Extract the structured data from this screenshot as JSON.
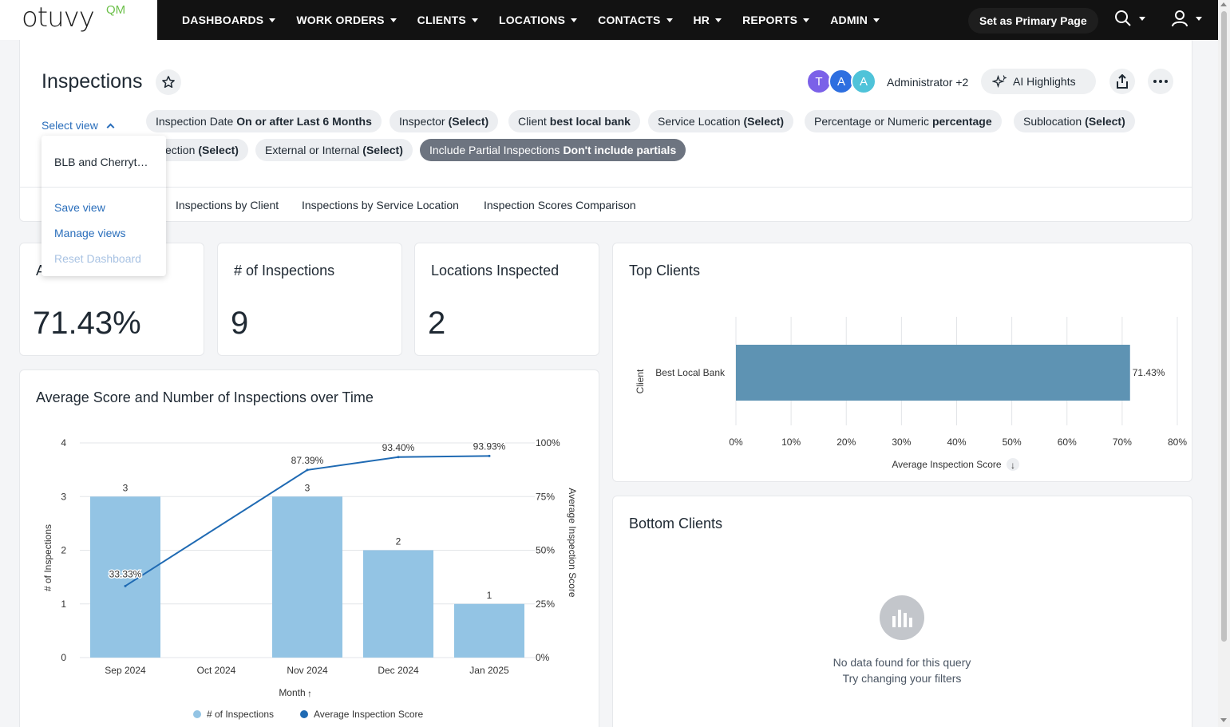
{
  "brand": {
    "logo_text": "otuvy",
    "logo_suffix": "QM"
  },
  "nav": {
    "items": [
      "DASHBOARDS",
      "WORK ORDERS",
      "CLIENTS",
      "LOCATIONS",
      "CONTACTS",
      "HR",
      "REPORTS",
      "ADMIN"
    ],
    "primary_button": "Set as Primary Page"
  },
  "header": {
    "title": "Inspections",
    "avatars": [
      {
        "letter": "T",
        "color": "#7b61e8"
      },
      {
        "letter": "A",
        "color": "#2e6fe0"
      },
      {
        "letter": "A",
        "color": "#4fc3d9"
      }
    ],
    "admin_label": "Administrator +2",
    "ai_button": "AI Highlights",
    "select_view": "Select view"
  },
  "filters": [
    {
      "label": "Inspection Date",
      "value": "On or after Last 6 Months"
    },
    {
      "label": "Inspector",
      "value": "(Select)"
    },
    {
      "label": "Client",
      "value": "best local bank"
    },
    {
      "label": "Service Location",
      "value": "(Select)"
    },
    {
      "label": "Percentage or Numeric",
      "value": "percentage"
    },
    {
      "label": "Sublocation",
      "value": "(Select)"
    },
    {
      "label": "ection",
      "value": "(Select)"
    },
    {
      "label": "External or Internal",
      "value": "(Select)"
    },
    {
      "label": "Include Partial Inspections",
      "value": "Don't include partials"
    }
  ],
  "tabs": [
    "Inspections by Client",
    "Inspections by Service Location",
    "Inspection Scores Comparison"
  ],
  "view_menu": {
    "saved_view": "BLB and Cherryt…",
    "save": "Save view",
    "manage": "Manage views",
    "reset": "Reset Dashboard"
  },
  "kpis": [
    {
      "title": "A",
      "value": "71.43%"
    },
    {
      "title": "# of Inspections",
      "value": "9"
    },
    {
      "title": "Locations Inspected",
      "value": "2"
    }
  ],
  "combo_chart": {
    "title": "Average Score and Number of Inspections over Time",
    "xlabel": "Month",
    "ylabel_left": "# of Inspections",
    "ylabel_right": "Average Inspection Score",
    "left_ticks": [
      "0",
      "1",
      "2",
      "3",
      "4"
    ],
    "right_ticks": [
      "0%",
      "25%",
      "50%",
      "75%",
      "100%"
    ],
    "legend": [
      "# of Inspections",
      "Average Inspection Score"
    ]
  },
  "top_clients": {
    "title": "Top Clients",
    "ylabel": "Client",
    "xlabel": "Average Inspection Score",
    "ticks": [
      "0%",
      "10%",
      "20%",
      "30%",
      "40%",
      "50%",
      "60%",
      "70%",
      "80%"
    ]
  },
  "bottom_clients": {
    "title": "Bottom Clients",
    "empty_line1": "No data found for this query",
    "empty_line2": "Try changing your filters"
  },
  "colors": {
    "bar": "#93c4e4",
    "line": "#1f6ab3",
    "hbar": "#5e93b3"
  },
  "chart_data": [
    {
      "type": "bar",
      "title": "Average Score and Number of Inspections over Time",
      "categories": [
        "Sep 2024",
        "Oct 2024",
        "Nov 2024",
        "Dec 2024",
        "Jan 2025"
      ],
      "series": [
        {
          "name": "# of Inspections",
          "type": "bar",
          "values": [
            3,
            0,
            3,
            2,
            1
          ],
          "labels": [
            "3",
            "",
            "3",
            "2",
            "1"
          ]
        },
        {
          "name": "Average Inspection Score",
          "type": "line",
          "values": [
            33.33,
            null,
            87.39,
            93.4,
            93.93
          ],
          "labels": [
            "33.33%",
            "",
            "87.39%",
            "93.40%",
            "93.93%"
          ]
        }
      ],
      "xlabel": "Month",
      "ylabel": "# of Inspections",
      "ylim": [
        0,
        4
      ],
      "y2label": "Average Inspection Score",
      "y2lim": [
        0,
        100
      ],
      "legend": "bottom"
    },
    {
      "type": "bar",
      "title": "Top Clients",
      "orientation": "horizontal",
      "categories": [
        "Best Local Bank"
      ],
      "values": [
        71.43
      ],
      "labels": [
        "71.43%"
      ],
      "xlabel": "Average Inspection Score",
      "ylabel": "Client",
      "xlim": [
        0,
        80
      ]
    }
  ]
}
